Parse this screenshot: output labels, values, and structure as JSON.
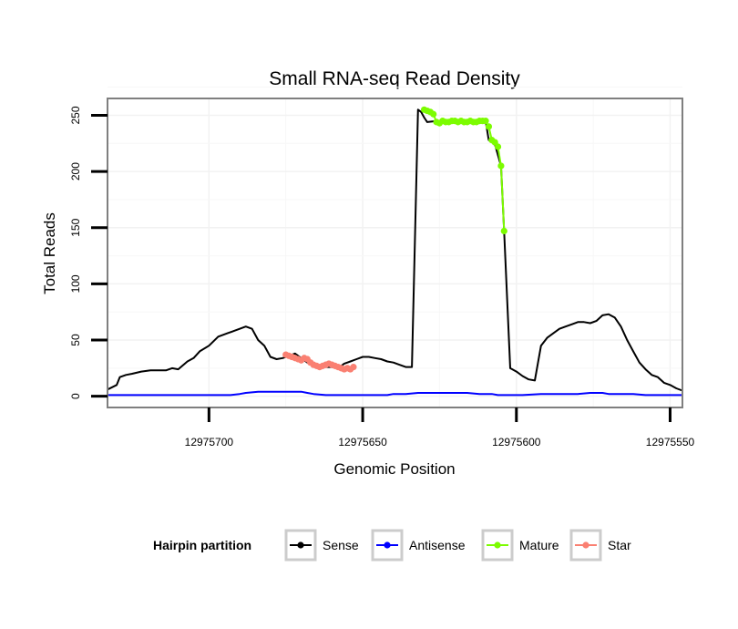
{
  "chart_data": {
    "type": "line",
    "title": "Small RNA-seq Read Density",
    "xlabel": "Genomic Position",
    "ylabel": "Total Reads",
    "xlim": [
      12975733,
      12975546
    ],
    "x_reversed": true,
    "ylim": [
      -10,
      265
    ],
    "grid": true,
    "x_ticks": [
      12975700,
      12975650,
      12975600,
      12975550
    ],
    "x_tick_labels": [
      "12975700",
      "12975650",
      "12975600",
      "12975550"
    ],
    "y_ticks": [
      0,
      50,
      100,
      150,
      200,
      250
    ],
    "y_tick_labels": [
      "0",
      "50",
      "100",
      "150",
      "200",
      "250"
    ],
    "legend": {
      "title": "Hairpin partition",
      "placement": "bottom",
      "entries": [
        {
          "name": "Sense",
          "color": "#000000"
        },
        {
          "name": "Antisense",
          "color": "#0000ff"
        },
        {
          "name": "Mature",
          "color": "#7cfc00"
        },
        {
          "name": "Star",
          "color": "#fa8072"
        }
      ]
    },
    "series": [
      {
        "name": "Sense",
        "color": "#000000",
        "marker": false,
        "x": [
          12975733,
          12975730,
          12975729,
          12975727,
          12975725,
          12975722,
          12975719,
          12975716,
          12975714,
          12975712,
          12975710,
          12975707,
          12975705,
          12975703,
          12975700,
          12975697,
          12975694,
          12975692,
          12975690,
          12975688,
          12975686,
          12975684,
          12975682,
          12975680,
          12975678,
          12975676,
          12975674,
          12975672,
          12975670,
          12975668,
          12975666,
          12975664,
          12975662,
          12975660,
          12975658,
          12975657,
          12975656,
          12975654,
          12975652,
          12975650,
          12975648,
          12975646,
          12975644,
          12975642,
          12975640,
          12975638,
          12975636,
          12975634,
          12975632,
          12975631,
          12975630,
          12975629,
          12975626,
          12975624,
          12975622,
          12975620,
          12975618,
          12975616,
          12975614,
          12975612,
          12975611,
          12975610,
          12975609,
          12975607,
          12975605,
          12975604,
          12975602,
          12975600,
          12975598,
          12975596,
          12975594,
          12975592,
          12975590,
          12975588,
          12975586,
          12975584,
          12975582,
          12975580,
          12975578,
          12975576,
          12975574,
          12975572,
          12975570,
          12975568,
          12975566,
          12975564,
          12975562,
          12975560,
          12975558,
          12975556,
          12975554,
          12975552,
          12975550,
          12975548,
          12975546
        ],
        "values": [
          6,
          10,
          17,
          19,
          20,
          22,
          23,
          23,
          23,
          25,
          24,
          31,
          34,
          40,
          45,
          53,
          56,
          58,
          60,
          62,
          60,
          50,
          45,
          35,
          33,
          34,
          36,
          38,
          34,
          30,
          28,
          27,
          26,
          26,
          25,
          27,
          29,
          31,
          33,
          35,
          35,
          34,
          33,
          31,
          30,
          28,
          26,
          26,
          255,
          253,
          248,
          244,
          245,
          245,
          245,
          245,
          245,
          245,
          245,
          245,
          245,
          245,
          228,
          224,
          205,
          147,
          25,
          22,
          18,
          15,
          14,
          45,
          52,
          56,
          60,
          62,
          64,
          66,
          66,
          65,
          67,
          72,
          73,
          70,
          62,
          50,
          40,
          30,
          24,
          19,
          17,
          12,
          10,
          7,
          5
        ]
      },
      {
        "name": "Antisense",
        "color": "#0000ff",
        "marker": false,
        "x": [
          12975733,
          12975723,
          12975713,
          12975703,
          12975693,
          12975690,
          12975688,
          12975684,
          12975680,
          12975676,
          12975672,
          12975670,
          12975668,
          12975666,
          12975662,
          12975658,
          12975654,
          12975650,
          12975646,
          12975642,
          12975640,
          12975636,
          12975632,
          12975628,
          12975624,
          12975620,
          12975616,
          12975612,
          12975608,
          12975606,
          12975604,
          12975602,
          12975598,
          12975592,
          12975588,
          12975586,
          12975584,
          12975580,
          12975576,
          12975572,
          12975570,
          12975566,
          12975562,
          12975558,
          12975554,
          12975550,
          12975546
        ],
        "values": [
          1,
          1,
          1,
          1,
          1,
          2,
          3,
          4,
          4,
          4,
          4,
          4,
          3,
          2,
          1,
          1,
          1,
          1,
          1,
          1,
          2,
          2,
          3,
          3,
          3,
          3,
          3,
          2,
          2,
          1,
          1,
          1,
          1,
          2,
          2,
          2,
          2,
          2,
          3,
          3,
          2,
          2,
          2,
          1,
          1,
          1,
          1
        ]
      },
      {
        "name": "Star",
        "color": "#fa8072",
        "marker": true,
        "x": [
          12975675,
          12975674,
          12975673,
          12975672,
          12975671,
          12975670,
          12975669,
          12975668,
          12975667,
          12975666,
          12975665,
          12975664,
          12975663,
          12975662,
          12975661,
          12975660,
          12975659,
          12975658,
          12975657,
          12975656,
          12975655,
          12975654,
          12975653
        ],
        "values": [
          37,
          36,
          35,
          34,
          33,
          32,
          34,
          33,
          30,
          28,
          27,
          26,
          27,
          28,
          29,
          28,
          27,
          26,
          25,
          24,
          25,
          24,
          26
        ]
      },
      {
        "name": "Mature",
        "color": "#7cfc00",
        "marker": true,
        "x": [
          12975630,
          12975629,
          12975628,
          12975627,
          12975626,
          12975625,
          12975624,
          12975623,
          12975622,
          12975621,
          12975620,
          12975619,
          12975618,
          12975617,
          12975616,
          12975615,
          12975614,
          12975613,
          12975612,
          12975611,
          12975610,
          12975609,
          12975608,
          12975607,
          12975606,
          12975605,
          12975604
        ],
        "values": [
          255,
          254,
          253,
          251,
          244,
          243,
          245,
          244,
          244,
          245,
          245,
          244,
          245,
          244,
          244,
          245,
          244,
          244,
          245,
          245,
          245,
          240,
          228,
          226,
          222,
          205,
          147
        ]
      }
    ]
  }
}
